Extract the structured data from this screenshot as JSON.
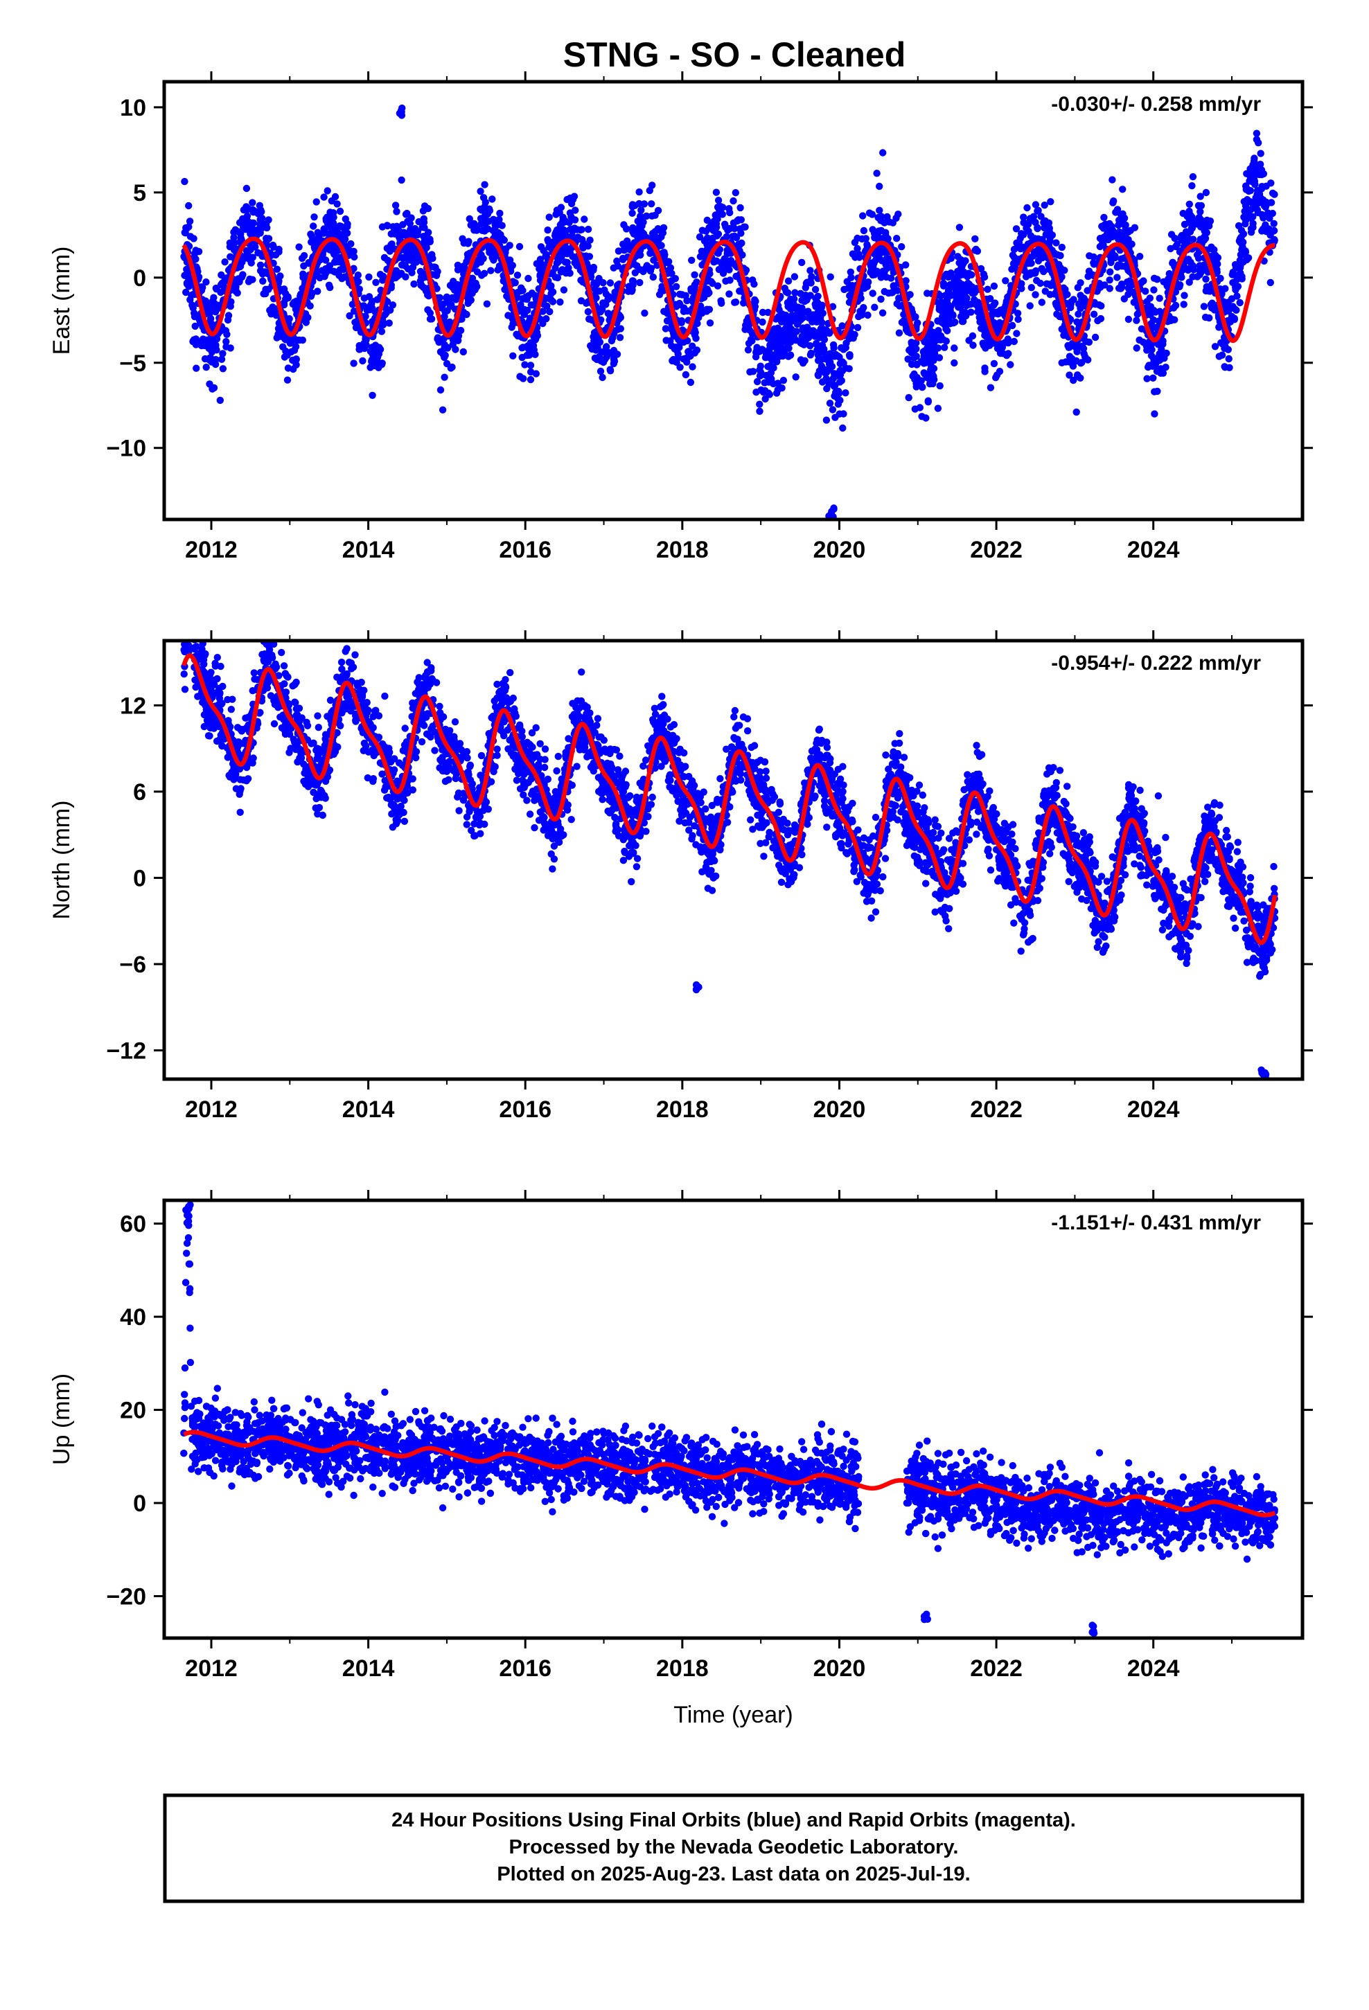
{
  "title": "STNG  - SO - Cleaned",
  "footer": {
    "lines": [
      "24 Hour Positions Using Final Orbits (blue) and Rapid Orbits (magenta).",
      "Processed by the Nevada Geodetic Laboratory.",
      "Plotted on 2025-Aug-23. Last data on 2025-Jul-19."
    ]
  },
  "colors": {
    "data": "#0000ff",
    "model": "#ff0000",
    "axis": "#000000"
  },
  "chart_data": [
    {
      "type": "scatter",
      "name": "east",
      "ylabel": "East (mm)",
      "xlabel": "",
      "rate_label": "-0.030+/- 0.258 mm/yr",
      "xlim": [
        2011.4,
        2025.9
      ],
      "ylim": [
        -14.2,
        11.5
      ],
      "xticks": [
        2012,
        2014,
        2016,
        2018,
        2020,
        2022,
        2024
      ],
      "xtick_labels": [
        "2012",
        "2014",
        "2016",
        "2018",
        "2020",
        "2022",
        "2024"
      ],
      "yticks": [
        10,
        5,
        0,
        -5,
        -10
      ],
      "ytick_labels": [
        "10",
        "5",
        "0",
        "−5",
        "−10"
      ],
      "data_start": 2011.65,
      "data_end": 2025.55,
      "gaps": [],
      "trend_mm_per_yr": -0.03,
      "model": {
        "offset": -0.3,
        "slope": -0.03,
        "annual_amp": 2.8,
        "annual_phase_year": 0.27,
        "semiannual_amp": 0.4,
        "semiannual_phase_year": 0.13
      },
      "excursions": [
        {
          "start": 2018.8,
          "end": 2020.25,
          "depth": -4.5
        },
        {
          "start": 2020.75,
          "end": 2022.0,
          "depth": -3.0
        },
        {
          "start": 2024.9,
          "end": 2025.55,
          "depth": 5.5
        }
      ],
      "noise_sd": 1.4,
      "outliers": [
        {
          "x": 2011.8,
          "y": -3.8
        },
        {
          "x": 2019.9,
          "y": -13.8
        },
        {
          "x": 2014.4,
          "y": 9.7
        }
      ]
    },
    {
      "type": "scatter",
      "name": "north",
      "ylabel": "North (mm)",
      "xlabel": "",
      "rate_label": "-0.954+/- 0.222 mm/yr",
      "xlim": [
        2011.4,
        2025.9
      ],
      "ylim": [
        -14.0,
        16.5
      ],
      "xticks": [
        2012,
        2014,
        2016,
        2018,
        2020,
        2022,
        2024
      ],
      "xtick_labels": [
        "2012",
        "2014",
        "2016",
        "2018",
        "2020",
        "2022",
        "2024"
      ],
      "yticks": [
        12,
        6,
        0,
        -6,
        -12
      ],
      "ytick_labels": [
        "12",
        "6",
        "0",
        "−6",
        "−12"
      ],
      "data_start": 2011.65,
      "data_end": 2025.55,
      "gaps": [],
      "trend_mm_per_yr": -0.954,
      "model": {
        "offset": 6.0,
        "slope": -0.954,
        "annual_amp": 3.0,
        "annual_phase_year": 0.55,
        "semiannual_amp": 1.0,
        "semiannual_phase_year": 0.05
      },
      "excursions": [
        {
          "start": 2011.65,
          "end": 2011.8,
          "depth": 6.0
        }
      ],
      "noise_sd": 1.3,
      "outliers": [
        {
          "x": 2011.7,
          "y": 16.0
        },
        {
          "x": 2025.4,
          "y": -13.5
        },
        {
          "x": 2018.2,
          "y": -7.5
        }
      ]
    },
    {
      "type": "scatter",
      "name": "up",
      "ylabel": "Up (mm)",
      "xlabel": "Time (year)",
      "rate_label": "-1.151+/- 0.431 mm/yr",
      "xlim": [
        2011.4,
        2025.9
      ],
      "ylim": [
        -29.0,
        65.0
      ],
      "xticks": [
        2012,
        2014,
        2016,
        2018,
        2020,
        2022,
        2024
      ],
      "xtick_labels": [
        "2012",
        "2014",
        "2016",
        "2018",
        "2020",
        "2022",
        "2024"
      ],
      "yticks": [
        60,
        40,
        20,
        0,
        -20
      ],
      "ytick_labels": [
        "60",
        "40",
        "20",
        "0",
        "−20"
      ],
      "data_start": 2011.65,
      "data_end": 2025.55,
      "gaps": [
        [
          2020.25,
          2020.85
        ]
      ],
      "trend_mm_per_yr": -1.151,
      "model": {
        "offset": 7.0,
        "slope": -1.151,
        "annual_amp": 1.0,
        "annual_phase_year": 0.6,
        "semiannual_amp": 0.2,
        "semiannual_phase_year": 0.1
      },
      "excursions": [
        {
          "start": 2011.65,
          "end": 2011.75,
          "depth": 48.0
        },
        {
          "start": 2020.85,
          "end": 2025.55,
          "depth": -3.0
        }
      ],
      "noise_sd": 3.6,
      "outliers": [
        {
          "x": 2011.7,
          "y": 63.0
        },
        {
          "x": 2014.0,
          "y": 19.5
        },
        {
          "x": 2023.25,
          "y": -27.0
        },
        {
          "x": 2021.1,
          "y": -24.0
        }
      ]
    }
  ]
}
